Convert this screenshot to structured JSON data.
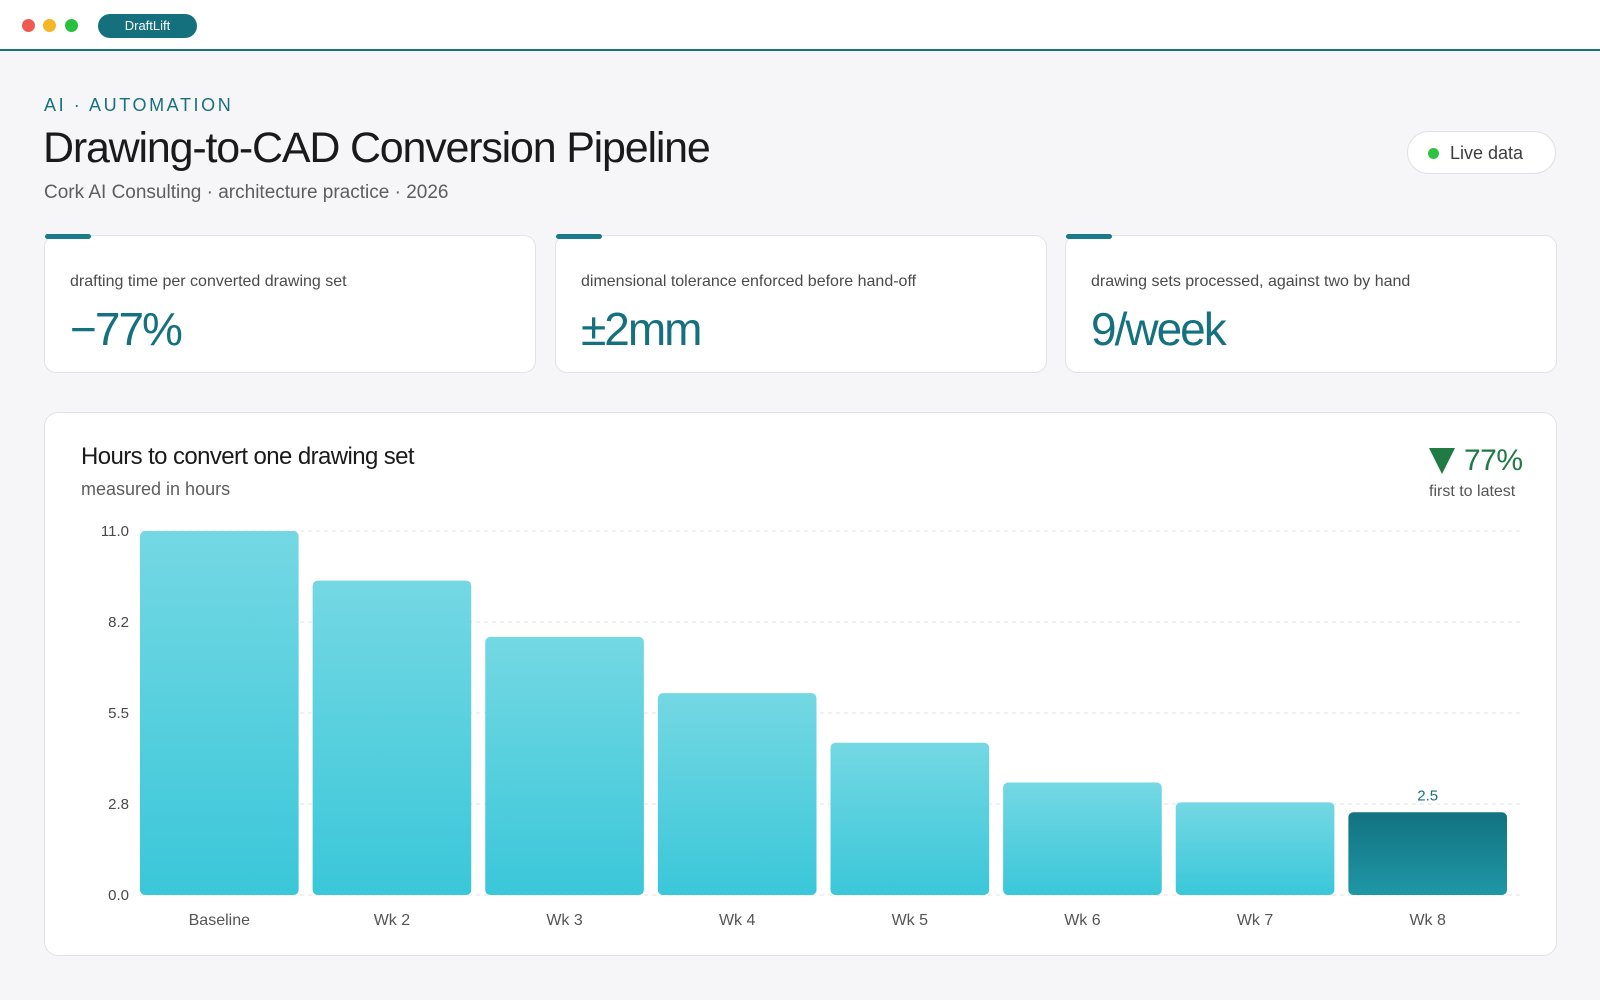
{
  "window": {
    "app_name": "DraftLift"
  },
  "header": {
    "eyebrow": "AI · AUTOMATION",
    "title": "Drawing-to-CAD Conversion Pipeline",
    "subtitle": "Cork AI Consulting · architecture practice · 2026",
    "live_label": "Live data"
  },
  "kpis": [
    {
      "label": "drafting time per converted drawing set",
      "value": "−77%"
    },
    {
      "label": "dimensional tolerance enforced before hand-off",
      "value": "±2mm"
    },
    {
      "label": "drawing sets processed, against two by hand",
      "value": "9/week"
    }
  ],
  "chart_card": {
    "title": "Hours to convert one drawing set",
    "subtitle": "measured in hours",
    "delta_value": "77%",
    "delta_note": "first to latest"
  },
  "colors": {
    "accent": "#15707f",
    "bar_light_top": "#74d8e3",
    "bar_light_bottom": "#3ac7d9",
    "bar_highlight_top": "#127280",
    "bar_highlight_bottom": "#1f97a6",
    "delta_green": "#1f7a44"
  },
  "chart_data": {
    "type": "bar",
    "title": "Hours to convert one drawing set",
    "subtitle": "measured in hours",
    "categories": [
      "Baseline",
      "Wk 2",
      "Wk 3",
      "Wk 4",
      "Wk 5",
      "Wk 6",
      "Wk 7",
      "Wk 8"
    ],
    "values": [
      11.0,
      9.5,
      7.8,
      6.1,
      4.6,
      3.4,
      2.8,
      2.5
    ],
    "ylim": [
      0,
      11
    ],
    "yticks": [
      "0.0",
      "2.8",
      "5.5",
      "8.2",
      "11.0"
    ],
    "ytick_values": [
      0,
      2.75,
      5.5,
      8.25,
      11
    ],
    "highlight_index": 7,
    "data_labels": [
      {
        "index": 7,
        "text": "2.5"
      }
    ],
    "grid": true,
    "legend": false
  }
}
